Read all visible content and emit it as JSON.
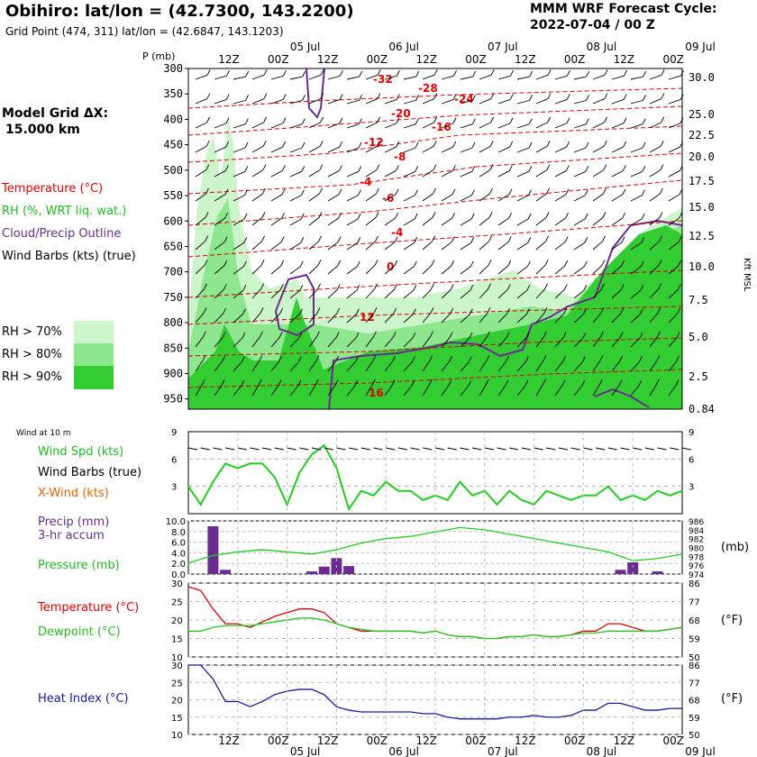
{
  "header": {
    "title": "Obihiro:  lat/lon = (42.7300, 143.2200)",
    "grid_point": "Grid Point (474, 311) lat/lon = (42.6847, 143.1203)",
    "cycle_label": "MMM WRF Forecast Cycle:",
    "cycle_value": "2022-07-04 / 00  Z",
    "model_grid_label": "Model Grid ΔX:",
    "model_grid_value": "15.000 km"
  },
  "legend": {
    "temperature": "Temperature (°C)",
    "rh": "RH (%, WRT liq. wat.)",
    "cloud": "Cloud/Precip Outline",
    "barbs": "Wind Barbs (kts) (true)",
    "rh70": "RH > 70%",
    "rh80": "RH > 80%",
    "rh90": "RH > 90%",
    "colors": {
      "rh70": "#ccf5cc",
      "rh80": "#8ee68e",
      "rh90": "#33cc33",
      "temp": "#dd0000",
      "cloud": "#6a2c91"
    }
  },
  "time_axis": {
    "hour_labels": [
      "12Z",
      "00Z",
      "12Z",
      "00Z",
      "12Z",
      "00Z",
      "12Z",
      "00Z",
      "12Z",
      "00Z"
    ],
    "date_labels": [
      "05 Jul",
      "06 Jul",
      "07 Jul",
      "08 Jul",
      "09 Jul"
    ]
  },
  "chart_data": [
    {
      "type": "area",
      "title": "Vertical cross-section",
      "ylabel": "P (mb)",
      "y2label": "Kft MSL",
      "pressure_ticks": [
        "300",
        "350",
        "400",
        "450",
        "500",
        "550",
        "600",
        "650",
        "700",
        "750",
        "800",
        "850",
        "900",
        "950"
      ],
      "height_ticks": [
        "30.0",
        "25.0",
        "22.5",
        "20.0",
        "17.5",
        "15.0",
        "12.5",
        "10.0",
        "7.5",
        "5.0",
        "2.5",
        "0.84"
      ],
      "temperature_contour_labels": [
        "-32",
        "-28",
        "-24",
        "-20",
        "-16",
        "-12",
        "-8",
        "-4",
        "-6",
        "-4",
        "0",
        "12",
        "16"
      ]
    },
    {
      "type": "line",
      "panel_title": "Wind at 10 m",
      "series": [
        {
          "name": "Wind Spd (kts)",
          "color": "#22cc22"
        }
      ],
      "x": [
        0,
        3,
        6,
        9,
        12,
        15,
        18,
        21,
        24,
        27,
        30,
        33,
        36,
        39,
        42,
        45,
        48,
        51,
        54,
        57,
        60,
        63,
        66,
        69,
        72,
        75,
        78,
        81,
        84,
        87,
        90,
        93,
        96,
        99,
        102,
        105,
        108,
        111,
        114,
        117,
        120
      ],
      "values": [
        3.0,
        1.0,
        3.5,
        5.5,
        5.0,
        5.5,
        5.5,
        4.0,
        1.0,
        4.5,
        6.5,
        7.5,
        5.0,
        0.5,
        2.5,
        2.0,
        3.5,
        2.5,
        2.5,
        1.5,
        2.0,
        1.5,
        3.5,
        2.0,
        2.5,
        1.0,
        2.5,
        1.5,
        1.0,
        2.5,
        2.0,
        1.5,
        2.0,
        2.0,
        3.0,
        1.5,
        2.0,
        1.5,
        2.5,
        2.0,
        2.5
      ],
      "yticks": [
        "9",
        "6",
        "3"
      ],
      "labels": {
        "spd": "Wind Spd (kts)",
        "barbs": "Wind Barbs (true)",
        "xwind": "X-Wind (kts)"
      }
    },
    {
      "type": "bar",
      "labels": {
        "precip": "Precip (mm)",
        "accum": "3-hr accum",
        "pressure": "Pressure (mb)",
        "unit": "(mb)"
      },
      "precip_x": [
        6,
        9,
        30,
        33,
        36,
        39,
        105,
        108,
        114
      ],
      "precip_values": [
        9.0,
        0.8,
        0.5,
        1.4,
        3.0,
        1.5,
        0.8,
        2.2,
        0.5
      ],
      "pressure_x": [
        0,
        6,
        12,
        18,
        24,
        30,
        36,
        42,
        48,
        54,
        60,
        66,
        72,
        78,
        84,
        90,
        96,
        102,
        108,
        114,
        120
      ],
      "pressure_values": [
        976.5,
        978.2,
        979.0,
        979.5,
        979.0,
        978.5,
        979.5,
        981.0,
        982.0,
        982.5,
        983.5,
        984.5,
        984.0,
        983.0,
        982.0,
        981.0,
        980.0,
        979.0,
        977.0,
        977.5,
        978.5
      ],
      "precip_ticks": [
        "10.0",
        "8.0",
        "6.0",
        "4.0",
        "2.0",
        "0.0"
      ],
      "pressure_ticks": [
        "986",
        "984",
        "982",
        "980",
        "978",
        "976",
        "974"
      ]
    },
    {
      "type": "line",
      "labels": {
        "temp": "Temperature (°C)",
        "dew": "Dewpoint (°C)",
        "unit": "(°F)"
      },
      "x": [
        0,
        3,
        6,
        9,
        12,
        15,
        18,
        21,
        24,
        27,
        30,
        33,
        36,
        39,
        42,
        45,
        48,
        51,
        54,
        57,
        60,
        63,
        66,
        69,
        72,
        75,
        78,
        81,
        84,
        87,
        90,
        93,
        96,
        99,
        102,
        105,
        108,
        111,
        114,
        117,
        120
      ],
      "temperature": [
        29,
        28,
        23,
        19,
        19,
        18,
        19.5,
        21,
        22,
        23,
        23,
        22,
        19,
        18,
        17,
        17,
        17,
        17,
        17,
        16.5,
        17,
        16,
        15.5,
        15.5,
        15,
        15,
        15.5,
        15.5,
        16,
        15.5,
        15.5,
        16,
        17,
        17,
        19,
        19,
        18,
        17,
        17,
        17.5,
        18
      ],
      "dewpoint": [
        17,
        17,
        18,
        18.5,
        18.5,
        18.5,
        19,
        19.5,
        20,
        20.5,
        20.5,
        20,
        19,
        18,
        17.5,
        17,
        17,
        17,
        17,
        16.5,
        17,
        16,
        15.5,
        15.5,
        15,
        15,
        15.5,
        15.5,
        16,
        15.5,
        15.5,
        16,
        16.5,
        16.5,
        17,
        17,
        17,
        17,
        17,
        17.5,
        18
      ],
      "yticks": [
        "30",
        "25",
        "20",
        "15",
        "10"
      ],
      "fticks": [
        "86",
        "77",
        "68",
        "59",
        "50"
      ]
    },
    {
      "type": "line",
      "labels": {
        "hi": "Heat Index (°C)",
        "unit": "(°F)"
      },
      "x": [
        0,
        3,
        6,
        9,
        12,
        15,
        18,
        21,
        24,
        27,
        30,
        33,
        36,
        39,
        42,
        45,
        48,
        51,
        54,
        57,
        60,
        63,
        66,
        69,
        72,
        75,
        78,
        81,
        84,
        87,
        90,
        93,
        96,
        99,
        102,
        105,
        108,
        111,
        114,
        117,
        120
      ],
      "heat_index": [
        30,
        30,
        26,
        19.5,
        19.5,
        18,
        19.5,
        21.5,
        22.5,
        23,
        23,
        21.5,
        18,
        17,
        16.5,
        16.5,
        16.5,
        16.5,
        16.5,
        16,
        16,
        15,
        14.5,
        14.5,
        14.5,
        14.5,
        15,
        15,
        15.5,
        15,
        15,
        15.5,
        17,
        17,
        19,
        19,
        18,
        17,
        17,
        17.5,
        17.5
      ],
      "yticks": [
        "30",
        "25",
        "20",
        "15",
        "10"
      ],
      "fticks": [
        "86",
        "77",
        "68",
        "59",
        "50"
      ]
    }
  ]
}
